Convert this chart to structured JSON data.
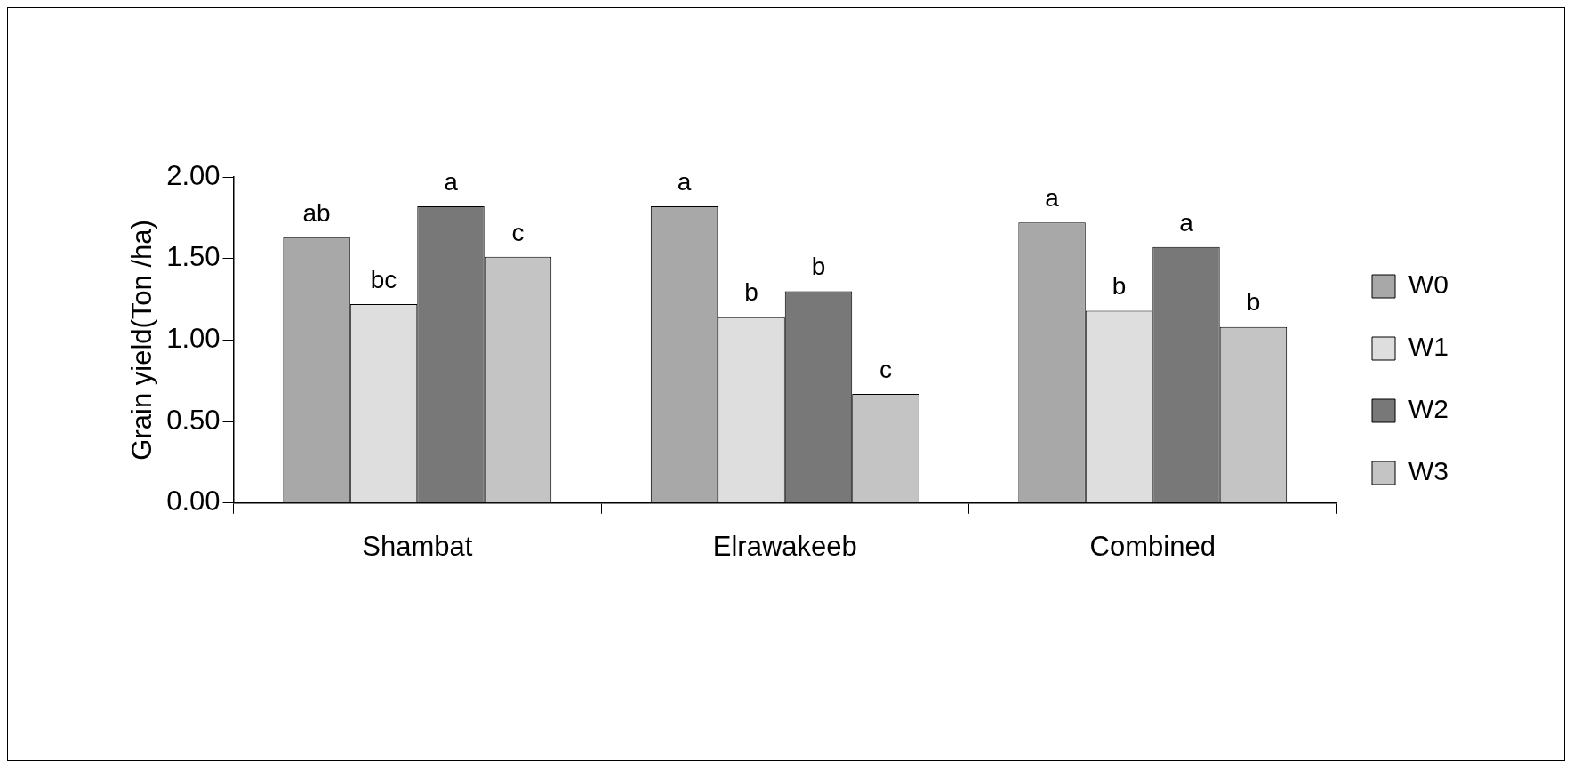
{
  "chart_data": {
    "type": "bar",
    "ylabel": "Grain yield(Ton /ha)",
    "categories": [
      "Shambat",
      "Elrawakeeb",
      "Combined"
    ],
    "series": [
      {
        "name": "W0",
        "color": "#a8a8a8",
        "values": [
          1.63,
          1.82,
          1.72
        ],
        "value_labels": [
          "ab",
          "a",
          "a"
        ]
      },
      {
        "name": "W1",
        "color": "#dedede",
        "values": [
          1.22,
          1.14,
          1.18
        ],
        "value_labels": [
          "bc",
          "b",
          "b"
        ]
      },
      {
        "name": "W2",
        "color": "#787878",
        "values": [
          1.82,
          1.3,
          1.57
        ],
        "value_labels": [
          "a",
          "b",
          "a"
        ]
      },
      {
        "name": "W3",
        "color": "#c4c4c4",
        "values": [
          1.51,
          0.67,
          1.08
        ],
        "value_labels": [
          "c",
          "c",
          "b"
        ]
      }
    ],
    "ylim": [
      0,
      2
    ],
    "yticks": [
      {
        "value": 0,
        "label": "0.00"
      },
      {
        "value": 0.5,
        "label": "0.50"
      },
      {
        "value": 1,
        "label": "1.00"
      },
      {
        "value": 1.5,
        "label": "1.50"
      },
      {
        "value": 2,
        "label": "2.00"
      }
    ],
    "grid": false,
    "legend": "right"
  }
}
